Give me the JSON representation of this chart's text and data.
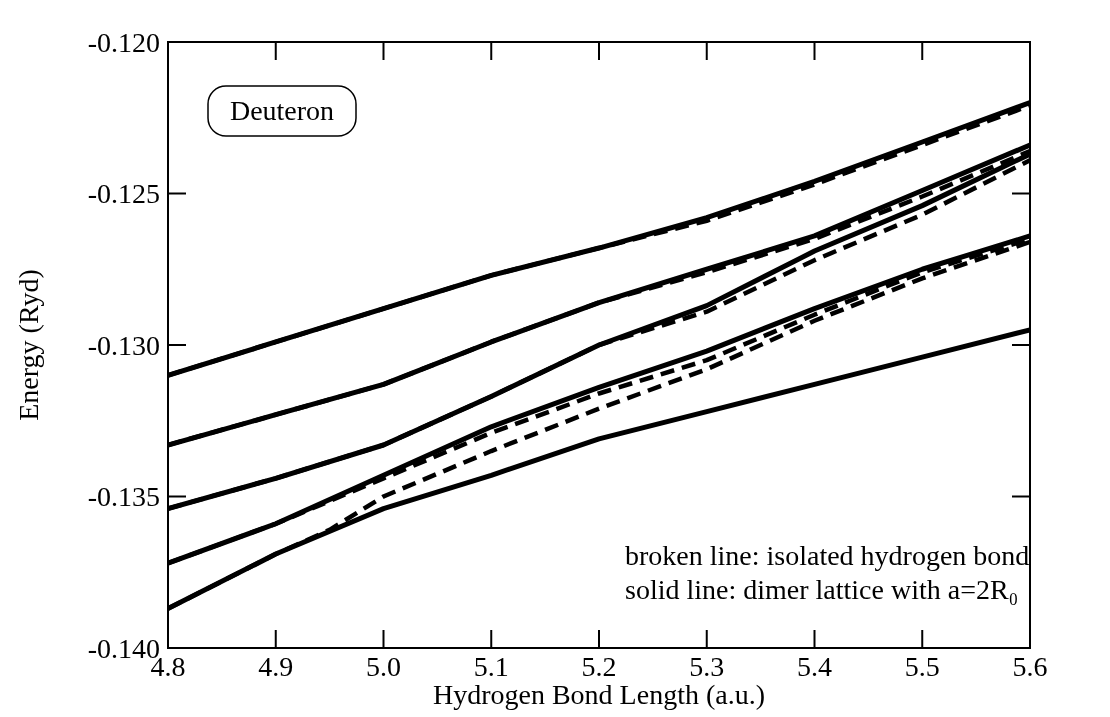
{
  "chart_data": {
    "type": "line",
    "xlabel": "Hydrogen Bond Length  (a.u.)",
    "ylabel": "Energy (Ryd)",
    "x": [
      4.8,
      4.9,
      5.0,
      5.1,
      5.2,
      5.3,
      5.4,
      5.5,
      5.6
    ],
    "xlim": [
      4.8,
      5.6
    ],
    "xticks": [
      {
        "value": 4.8,
        "label": "4.8"
      },
      {
        "value": 4.9,
        "label": "4.9"
      },
      {
        "value": 5.0,
        "label": "5.0"
      },
      {
        "value": 5.1,
        "label": "5.1"
      },
      {
        "value": 5.2,
        "label": "5.2"
      },
      {
        "value": 5.3,
        "label": "5.3"
      },
      {
        "value": 5.4,
        "label": "5.4"
      },
      {
        "value": 5.5,
        "label": "5.5"
      },
      {
        "value": 5.6,
        "label": "5.6"
      }
    ],
    "ylim": [
      -0.14,
      -0.12
    ],
    "yticks": [
      {
        "value": -0.14,
        "label": "-0.140"
      },
      {
        "value": -0.135,
        "label": "-0.135"
      },
      {
        "value": -0.13,
        "label": "-0.130"
      },
      {
        "value": -0.125,
        "label": "-0.125"
      },
      {
        "value": -0.12,
        "label": "-0.120"
      }
    ],
    "grid": false,
    "marker": "none",
    "annotations": [
      "Deuteron",
      "broken line: isolated hydrogen bond",
      "solid line: dimer lattice with a=2R₀"
    ],
    "series": [
      {
        "color": "#000000",
        "line_style": "solid",
        "values": [
          -0.131,
          -0.1299,
          -0.1288,
          -0.1277,
          -0.1268,
          -0.1258,
          -0.1246,
          -0.1233,
          -0.122
        ]
      },
      {
        "color": "#000000",
        "line_style": "solid",
        "values": [
          -0.1333,
          -0.1323,
          -0.1313,
          -0.1299,
          -0.1286,
          -0.1275,
          -0.1264,
          -0.1249,
          -0.1234
        ]
      },
      {
        "color": "#000000",
        "line_style": "solid",
        "values": [
          -0.1354,
          -0.1344,
          -0.1333,
          -0.1317,
          -0.13,
          -0.1287,
          -0.1269,
          -0.1254,
          -0.1237
        ]
      },
      {
        "color": "#000000",
        "line_style": "solid",
        "values": [
          -0.1372,
          -0.1359,
          -0.1343,
          -0.1327,
          -0.1314,
          -0.1302,
          -0.1288,
          -0.1275,
          -0.1264
        ]
      },
      {
        "color": "#000000",
        "line_style": "solid",
        "values": [
          -0.1387,
          -0.1369,
          -0.1354,
          -0.1343,
          -0.1331,
          -0.1322,
          -0.1313,
          -0.1304,
          -0.1295
        ]
      },
      {
        "color": "#000000",
        "line_style": "dashed",
        "values": [
          -0.131,
          -0.1299,
          -0.1288,
          -0.1277,
          -0.1268,
          -0.1259,
          -0.1247,
          -0.1234,
          -0.1221
        ]
      },
      {
        "color": "#000000",
        "line_style": "dashed",
        "values": [
          -0.1333,
          -0.1323,
          -0.1313,
          -0.1299,
          -0.1286,
          -0.1276,
          -0.1265,
          -0.1251,
          -0.1236
        ]
      },
      {
        "color": "#000000",
        "line_style": "dashed",
        "values": [
          -0.1354,
          -0.1344,
          -0.1333,
          -0.1317,
          -0.13,
          -0.1289,
          -0.1272,
          -0.1257,
          -0.1239
        ]
      },
      {
        "color": "#000000",
        "line_style": "dashed",
        "values": [
          -0.1372,
          -0.1359,
          -0.1344,
          -0.1329,
          -0.1316,
          -0.1305,
          -0.129,
          -0.1276,
          -0.1265
        ]
      },
      {
        "color": "#000000",
        "line_style": "dashed",
        "x": [
          4.8,
          4.9,
          4.95,
          5.0,
          5.1,
          5.2,
          5.3,
          5.4,
          5.5,
          5.6
        ],
        "values": [
          -0.1387,
          -0.1369,
          -0.1361,
          -0.135,
          -0.1335,
          -0.1321,
          -0.1308,
          -0.1292,
          -0.1278,
          -0.1266
        ]
      }
    ]
  }
}
